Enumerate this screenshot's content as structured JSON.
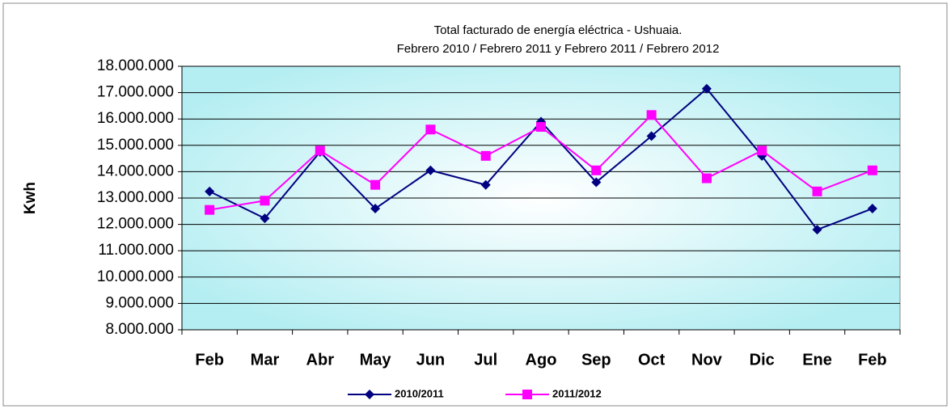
{
  "chart_data": {
    "type": "line",
    "title": "Total facturado de energía eléctrica - Ushuaia.",
    "subtitle": "Febrero 2010 / Febrero 2011 y Febrero 2011 / Febrero 2012",
    "y_label": "Kwh",
    "categories": [
      "Feb",
      "Mar",
      "Abr",
      "May",
      "Jun",
      "Jul",
      "Ago",
      "Sep",
      "Oct",
      "Nov",
      "Dic",
      "Ene",
      "Feb"
    ],
    "series": [
      {
        "name": "2010/2011",
        "color": "#000080",
        "marker": "diamond",
        "values": [
          13250000,
          12230000,
          14750000,
          12600000,
          14050000,
          13500000,
          15900000,
          13600000,
          15350000,
          17150000,
          14600000,
          11800000,
          12600000
        ]
      },
      {
        "name": "2011/2012",
        "color": "#ff00ff",
        "marker": "square",
        "values": [
          12550000,
          12900000,
          14800000,
          13500000,
          15600000,
          14600000,
          15700000,
          14050000,
          16150000,
          13750000,
          14800000,
          13250000,
          14050000
        ]
      }
    ],
    "ylim": [
      8000000,
      18000000
    ],
    "yticks": [
      {
        "value": 8000000,
        "label": "8.000.000"
      },
      {
        "value": 9000000,
        "label": "9.000.000"
      },
      {
        "value": 10000000,
        "label": "10.000.000"
      },
      {
        "value": 11000000,
        "label": "11.000.000"
      },
      {
        "value": 12000000,
        "label": "12.000.000"
      },
      {
        "value": 13000000,
        "label": "13.000.000"
      },
      {
        "value": 14000000,
        "label": "14.000.000"
      },
      {
        "value": 15000000,
        "label": "15.000.000"
      },
      {
        "value": 16000000,
        "label": "16.000.000"
      },
      {
        "value": 17000000,
        "label": "17.000.000"
      },
      {
        "value": 18000000,
        "label": "18.000.000"
      }
    ],
    "grid": true,
    "legend": "bottom"
  }
}
